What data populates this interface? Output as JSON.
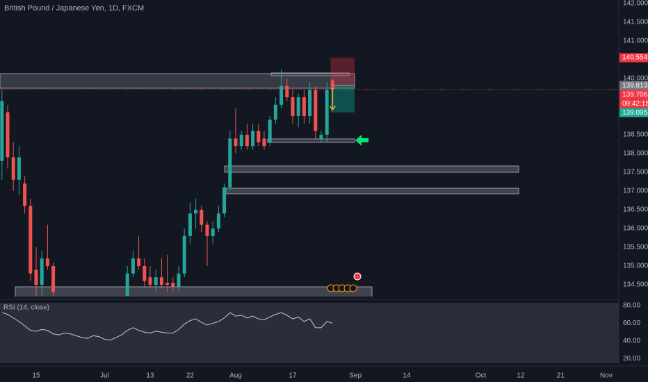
{
  "chart_data": [
    {
      "type": "candlestick",
      "title": "British Pound / Japanese Yen, 1D, FXCM",
      "x": [
        -6,
        -5,
        -4,
        -3,
        -2,
        -1,
        0,
        1,
        2,
        3,
        16,
        17,
        18,
        19,
        20,
        21,
        22,
        23,
        24,
        25,
        26,
        27,
        28,
        29,
        30,
        31,
        32,
        33,
        34,
        35,
        36,
        37,
        38,
        39,
        40,
        41,
        42,
        43,
        44,
        45,
        46,
        47,
        48,
        49,
        50,
        51,
        52
      ],
      "open": [
        137.8,
        139.1,
        137.9,
        137.3,
        137.2,
        136.6,
        134.9,
        134.5,
        135.2,
        135.0,
        134.2,
        134.8,
        135.2,
        135.0,
        134.7,
        134.5,
        134.7,
        134.55,
        134.55,
        134.45,
        134.8,
        135.8,
        136.4,
        136.5,
        136.1,
        135.8,
        136.0,
        136.4,
        137.1,
        138.4,
        138.2,
        138.5,
        138.2,
        138.6,
        138.4,
        138.3,
        138.9,
        139.3,
        139.8,
        139.5,
        139.0,
        139.5,
        139.0,
        139.7,
        138.4,
        138.5,
        139.95
      ],
      "high": [
        139.7,
        139.3,
        138.3,
        138.2,
        137.4,
        136.8,
        135.5,
        135.4,
        136.1,
        135.1,
        135.0,
        135.4,
        135.8,
        135.2,
        135.0,
        134.9,
        135.2,
        135.3,
        134.7,
        135.0,
        136.0,
        136.7,
        136.8,
        136.6,
        136.2,
        136.2,
        136.6,
        137.2,
        138.6,
        139.2,
        138.6,
        138.8,
        138.8,
        138.8,
        138.6,
        139.0,
        139.5,
        140.25,
        140.0,
        139.7,
        139.6,
        139.7,
        139.9,
        139.8,
        138.6,
        139.9,
        140.0
      ],
      "low": [
        137.3,
        137.6,
        137.0,
        136.9,
        136.4,
        134.6,
        134.2,
        134.2,
        134.9,
        134.2,
        134.2,
        134.7,
        134.9,
        134.4,
        134.4,
        134.3,
        134.4,
        134.3,
        134.3,
        134.3,
        134.7,
        135.6,
        136.0,
        135.9,
        135.0,
        135.6,
        135.9,
        136.3,
        137.0,
        138.0,
        138.1,
        138.1,
        138.1,
        138.2,
        138.1,
        138.2,
        138.8,
        139.2,
        139.4,
        138.8,
        138.7,
        138.8,
        138.8,
        138.4,
        138.3,
        138.3,
        139.65
      ],
      "close": [
        139.4,
        137.9,
        137.3,
        137.9,
        136.6,
        134.8,
        134.5,
        135.2,
        135.0,
        134.3,
        134.8,
        135.2,
        135.0,
        134.6,
        134.5,
        134.7,
        134.5,
        134.5,
        134.45,
        134.8,
        135.8,
        136.4,
        136.5,
        136.1,
        135.8,
        136.0,
        136.4,
        137.1,
        138.4,
        138.2,
        138.5,
        138.2,
        138.6,
        138.3,
        138.2,
        138.9,
        139.3,
        139.8,
        139.5,
        139.0,
        139.5,
        139.0,
        139.7,
        138.6,
        138.5,
        139.7,
        139.706
      ],
      "up_color": "#26a69a",
      "down_color": "#ef5350",
      "xlim": [
        -6.34,
        102.2
      ],
      "ylim": [
        134.185,
        142.093
      ],
      "yticks": [
        {
          "value": 142,
          "label": "142.000"
        },
        {
          "value": 141.5,
          "label": "141.500"
        },
        {
          "value": 141,
          "label": "141.000"
        },
        {
          "value": 140,
          "label": "140.000"
        },
        {
          "value": 138.5,
          "label": "138.500"
        },
        {
          "value": 138,
          "label": "138.000"
        },
        {
          "value": 137.5,
          "label": "137.500"
        },
        {
          "value": 137,
          "label": "137.000"
        },
        {
          "value": 136.5,
          "label": "136.500"
        },
        {
          "value": 136,
          "label": "136.000"
        },
        {
          "value": 135.5,
          "label": "135.500"
        },
        {
          "value": 135,
          "label": "135.000"
        },
        {
          "value": 134.5,
          "label": "134.500"
        }
      ],
      "xticks": [
        {
          "value": 0,
          "label": "15"
        },
        {
          "value": 12,
          "label": "Jul"
        },
        {
          "value": 20,
          "label": "13"
        },
        {
          "value": 27,
          "label": "22"
        },
        {
          "value": 35,
          "label": "Aug"
        },
        {
          "value": 45,
          "label": "17"
        },
        {
          "value": 56,
          "label": "Sep"
        },
        {
          "value": 65,
          "label": "14"
        },
        {
          "value": 78,
          "label": "Oct"
        },
        {
          "value": 85,
          "label": "12"
        },
        {
          "value": 92,
          "label": "21"
        },
        {
          "value": 100,
          "label": "Nov"
        }
      ],
      "last_price": {
        "value": 139.706,
        "countdown": "09:42:15",
        "color": "#f23645"
      },
      "position": {
        "entry": 139.813,
        "stop": 140.554,
        "target": 139.095
      }
    },
    {
      "type": "line",
      "title": "RSI (14, close)",
      "x": [
        -6,
        -5,
        -4,
        -3,
        -2,
        -1,
        0,
        1,
        2,
        3,
        4,
        5,
        6,
        7,
        8,
        9,
        10,
        11,
        12,
        13,
        14,
        15,
        16,
        17,
        18,
        19,
        20,
        21,
        22,
        23,
        24,
        25,
        26,
        27,
        28,
        29,
        30,
        31,
        32,
        33,
        34,
        35,
        36,
        37,
        38,
        39,
        40,
        41,
        42,
        43,
        44,
        45,
        46,
        47,
        48,
        49,
        50,
        51,
        52
      ],
      "values": [
        72,
        70,
        66,
        62,
        57,
        52,
        51,
        53,
        52,
        48,
        47,
        49,
        48,
        46,
        44,
        43,
        46,
        45,
        42,
        41,
        44,
        47,
        52,
        55,
        52,
        50,
        49,
        51,
        50,
        49,
        49,
        53,
        59,
        63,
        65,
        61,
        58,
        60,
        62,
        66,
        72,
        68,
        69,
        66,
        68,
        65,
        64,
        67,
        70,
        72,
        69,
        65,
        67,
        62,
        65,
        55,
        55,
        62,
        60
      ],
      "color": "#c8cad0",
      "xlim": [
        -6.34,
        102.2
      ],
      "ylim": [
        15,
        83
      ],
      "yticks": [
        {
          "value": 80,
          "label": "80.00"
        },
        {
          "value": 60,
          "label": "60.00"
        },
        {
          "value": 40,
          "label": "40.00"
        },
        {
          "value": 20,
          "label": "20.00"
        }
      ]
    }
  ]
}
